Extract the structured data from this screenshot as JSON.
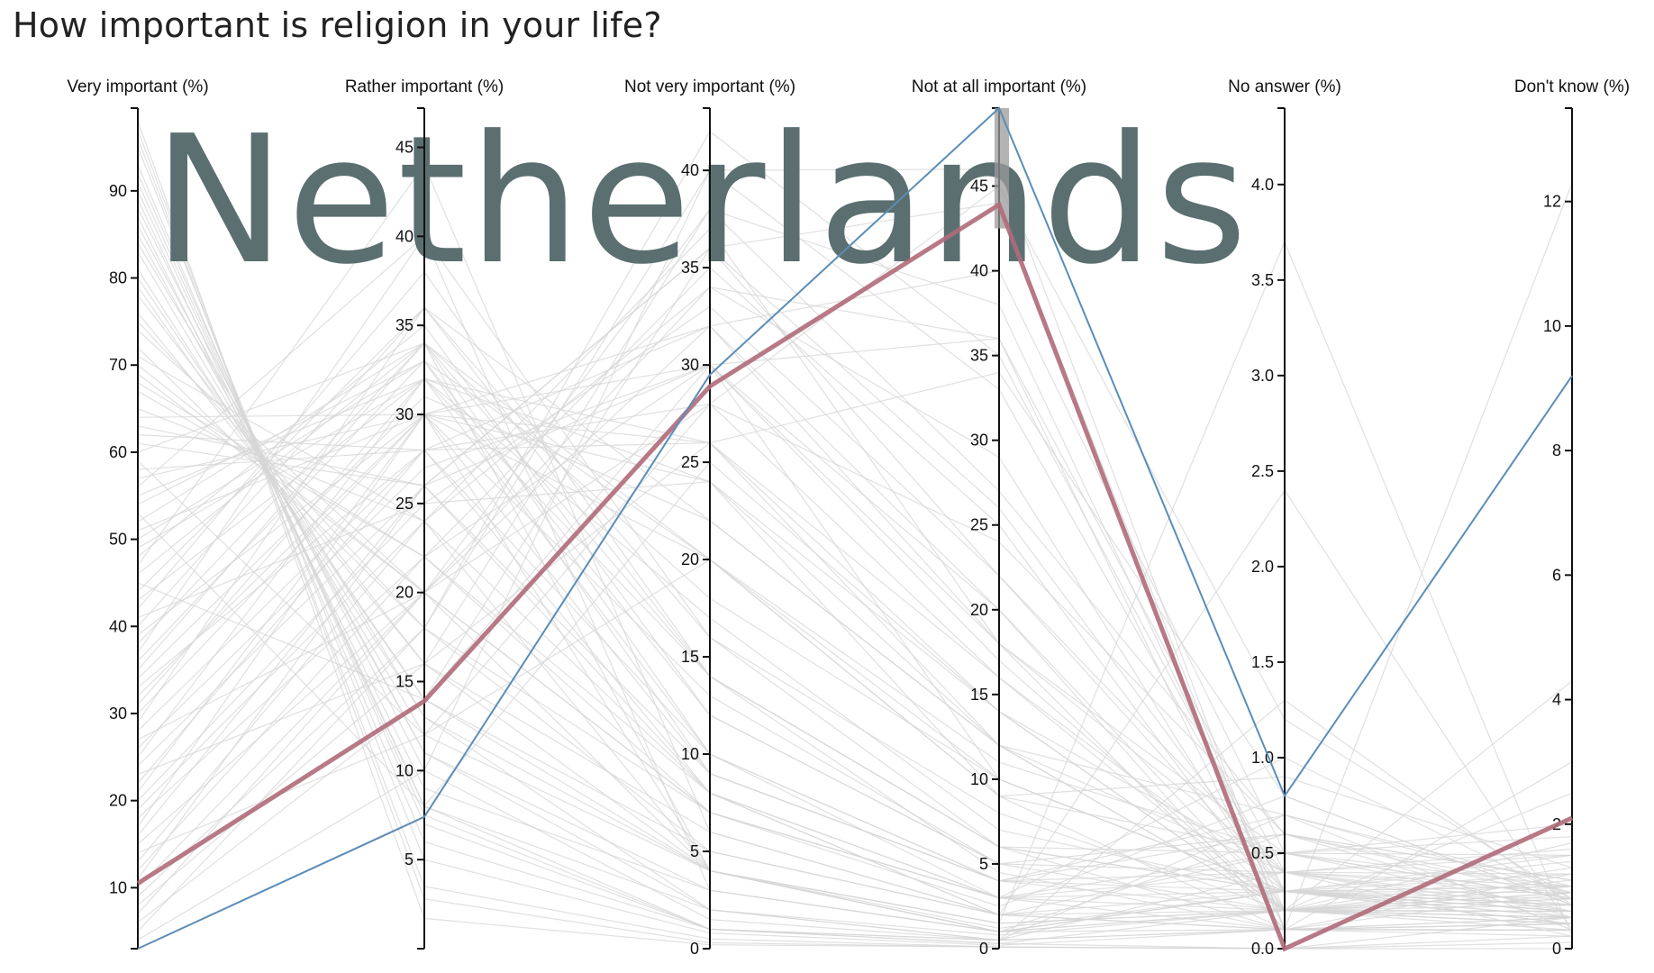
{
  "page": {
    "title": "How important is religion in your life?"
  },
  "highlight": {
    "country": "Netherlands"
  },
  "colors": {
    "background_lines": "#d6d6d6",
    "highlight": "#b06a7a",
    "comparison": "#5b8db8",
    "brush": "#999999",
    "watermark": "#5b6f70"
  },
  "chart_data": {
    "type": "parallel_coordinates",
    "title": "How important is religion in your life?",
    "axes": [
      {
        "key": "very",
        "label": "Very important (%)",
        "min": 3,
        "max": 99.5,
        "ticks": [
          10,
          20,
          30,
          40,
          50,
          60,
          70,
          80,
          90
        ]
      },
      {
        "key": "rather",
        "label": "Rather important (%)",
        "min": 0,
        "max": 47.2,
        "ticks": [
          5,
          10,
          15,
          20,
          25,
          30,
          35,
          40,
          45
        ]
      },
      {
        "key": "notvery",
        "label": "Not very important (%)",
        "min": 0,
        "max": 43.2,
        "ticks": [
          0,
          5,
          10,
          15,
          20,
          25,
          30,
          35,
          40
        ]
      },
      {
        "key": "notall",
        "label": "Not at all important (%)",
        "min": 0,
        "max": 49.6,
        "ticks": [
          0,
          5,
          10,
          15,
          20,
          25,
          30,
          35,
          40,
          45
        ]
      },
      {
        "key": "noans",
        "label": "No answer (%)",
        "min": 0,
        "max": 4.4,
        "ticks": [
          "0.0",
          "0.5",
          "1.0",
          "1.5",
          "2.0",
          "2.5",
          "3.0",
          "3.5",
          "4.0"
        ]
      },
      {
        "key": "dk",
        "label": "Don't know (%)",
        "min": 0,
        "max": 13.5,
        "ticks": [
          0,
          2,
          4,
          6,
          8,
          10,
          12
        ]
      }
    ],
    "brush": {
      "axis": "notall",
      "range": [
        42.5,
        49.6
      ]
    },
    "highlighted_series": [
      {
        "role": "selected",
        "values": [
          10.5,
          13.9,
          28.9,
          43.9,
          0.0,
          2.1
        ],
        "color": "#b06a7a"
      },
      {
        "role": "comparison",
        "values": [
          3.0,
          7.4,
          29.5,
          49.6,
          0.8,
          9.2
        ],
        "color": "#5b8db8"
      }
    ],
    "series": [
      [
        95,
        5,
        0.8,
        0.2,
        0.1,
        0.3
      ],
      [
        93,
        6,
        1,
        0.3,
        0.0,
        0.5
      ],
      [
        91,
        7.5,
        1,
        0.5,
        0.1,
        0.2
      ],
      [
        89,
        8,
        2,
        0.8,
        0.2,
        0.4
      ],
      [
        87,
        9,
        3,
        1,
        0.3,
        0.7
      ],
      [
        85,
        11,
        3,
        1,
        0.2,
        0.5
      ],
      [
        83,
        12,
        4,
        1,
        0.1,
        0.3
      ],
      [
        81,
        13,
        4,
        1.5,
        0.2,
        0.6
      ],
      [
        79,
        14,
        5,
        2,
        0.3,
        1.0
      ],
      [
        76,
        16,
        6,
        2,
        0.2,
        0.8
      ],
      [
        72,
        18,
        7,
        3,
        0.4,
        1.2
      ],
      [
        68,
        22,
        7,
        3,
        0.3,
        1.5
      ],
      [
        65,
        24,
        8,
        3,
        0.5,
        2.0
      ],
      [
        61,
        26,
        9,
        4,
        0.6,
        1.1
      ],
      [
        58,
        28,
        10,
        4,
        0.3,
        0.7
      ],
      [
        57,
        30,
        9,
        4,
        0.2,
        0.5
      ],
      [
        55,
        32,
        10,
        3,
        0.1,
        0.4
      ],
      [
        54,
        33,
        9,
        4,
        0.4,
        1.0
      ],
      [
        52,
        34,
        10,
        4,
        0.7,
        0.9
      ],
      [
        50,
        33,
        12,
        5,
        0.2,
        1.3
      ],
      [
        48,
        35,
        12,
        5,
        0.6,
        0.8
      ],
      [
        46,
        34,
        14,
        6,
        0.3,
        0.6
      ],
      [
        44,
        36,
        14,
        6,
        0.1,
        0.4
      ],
      [
        42,
        38,
        14,
        6,
        0.5,
        1.8
      ],
      [
        40,
        36,
        16,
        8,
        0.2,
        0.9
      ],
      [
        38,
        34,
        18,
        10,
        0.3,
        1.2
      ],
      [
        36,
        33,
        20,
        11,
        0.5,
        1.5
      ],
      [
        34,
        31,
        22,
        12,
        0.7,
        1.0
      ],
      [
        32,
        30,
        24,
        14,
        0.2,
        0.7
      ],
      [
        30,
        30,
        26,
        14,
        0.4,
        0.6
      ],
      [
        28,
        28,
        28,
        16,
        0.3,
        1.4
      ],
      [
        26,
        27,
        30,
        17,
        0.2,
        2.5
      ],
      [
        24,
        26,
        30,
        20,
        0.1,
        1.2
      ],
      [
        22,
        28,
        32,
        18,
        0.5,
        0.8
      ],
      [
        20,
        25,
        33,
        22,
        0.3,
        0.6
      ],
      [
        18,
        22,
        35,
        25,
        0.2,
        1.0
      ],
      [
        16,
        26,
        36,
        22,
        0.4,
        0.5
      ],
      [
        15,
        20,
        38,
        27,
        0.6,
        0.9
      ],
      [
        13,
        24,
        34,
        29,
        0.2,
        1.7
      ],
      [
        12,
        22,
        30,
        36,
        0.4,
        1.5
      ],
      [
        10,
        20,
        34,
        36,
        0.1,
        3.0
      ],
      [
        9,
        18,
        40,
        33,
        0.3,
        0.7
      ],
      [
        8,
        16,
        38,
        38,
        0.2,
        0.5
      ],
      [
        6,
        14,
        36,
        44,
        0.1,
        0.9
      ],
      [
        5,
        18,
        42,
        35,
        0.3,
        0.4
      ],
      [
        97,
        2.8,
        0.3,
        0.1,
        0.0,
        0.1
      ],
      [
        98,
        1.7,
        0.2,
        0.1,
        0.0,
        0.0
      ],
      [
        96,
        3.5,
        0.5,
        0.1,
        0.0,
        0.2
      ],
      [
        92,
        7,
        1,
        0.5,
        0.7,
        0.3
      ],
      [
        88,
        10,
        1.5,
        0.5,
        1.3,
        0.7
      ],
      [
        80,
        14,
        4,
        1.5,
        3.7,
        0.2
      ],
      [
        75,
        18,
        5,
        2,
        0.1,
        12.3
      ],
      [
        70,
        20,
        7,
        3,
        1.0,
        0.8
      ],
      [
        67,
        22,
        8,
        2,
        2.4,
        0.3
      ],
      [
        63,
        26,
        8,
        3,
        0.2,
        4.3
      ],
      [
        59,
        12,
        20,
        9,
        0.1,
        0.5
      ],
      [
        56,
        40,
        3,
        1,
        0.3,
        0.4
      ],
      [
        53,
        8,
        25,
        14,
        0.2,
        0.6
      ],
      [
        47,
        44,
        6,
        2,
        0.5,
        0.8
      ],
      [
        45,
        14,
        30,
        10,
        0.3,
        1.0
      ],
      [
        41,
        25,
        24,
        9,
        0.9,
        1.3
      ],
      [
        37,
        40,
        16,
        6,
        0.3,
        0.6
      ],
      [
        33,
        28,
        26,
        12,
        0.2,
        0.4
      ],
      [
        29,
        36,
        22,
        12,
        0.4,
        0.9
      ],
      [
        27,
        20,
        28,
        24,
        0.6,
        0.5
      ],
      [
        25,
        32,
        26,
        16,
        0.2,
        1.1
      ],
      [
        23,
        16,
        26,
        34,
        0.8,
        0.7
      ],
      [
        21,
        30,
        30,
        18,
        0.1,
        0.4
      ],
      [
        19,
        24,
        37,
        18,
        0.4,
        1.6
      ],
      [
        17,
        30,
        32,
        20,
        0.2,
        0.3
      ],
      [
        14,
        12,
        28,
        45,
        1.2,
        0.8
      ],
      [
        11,
        26,
        36,
        26,
        0.3,
        0.5
      ],
      [
        7,
        20,
        32,
        40,
        0.5,
        0.6
      ],
      [
        4,
        10,
        40,
        46,
        0.1,
        0.3
      ],
      [
        64,
        30,
        4,
        1,
        0.2,
        0.8
      ],
      [
        60,
        34,
        4,
        1,
        0.3,
        0.9
      ],
      [
        71,
        24,
        4,
        1,
        0.6,
        1.1
      ],
      [
        84,
        13,
        2,
        0.5,
        0.4,
        0.2
      ],
      [
        90,
        8,
        1,
        0.3,
        0.2,
        0.6
      ],
      [
        86,
        11,
        2,
        0.5,
        0.1,
        0.3
      ],
      [
        78,
        16,
        4,
        1.5,
        0.2,
        0.4
      ],
      [
        74,
        20,
        4,
        1.2,
        0.3,
        0.5
      ],
      [
        69,
        20,
        7,
        2.5,
        0.8,
        0.7
      ],
      [
        62,
        28,
        8,
        2,
        0.1,
        0.3
      ],
      [
        51,
        30,
        13,
        5,
        0.4,
        0.7
      ],
      [
        49,
        32,
        14,
        4.5,
        0.1,
        0.5
      ],
      [
        43,
        32,
        17,
        7,
        0.3,
        0.8
      ],
      [
        39,
        30,
        20,
        9,
        0.5,
        1.0
      ],
      [
        35,
        34,
        20,
        10,
        0.3,
        0.7
      ],
      [
        31,
        32,
        24,
        12,
        0.2,
        0.9
      ]
    ]
  }
}
